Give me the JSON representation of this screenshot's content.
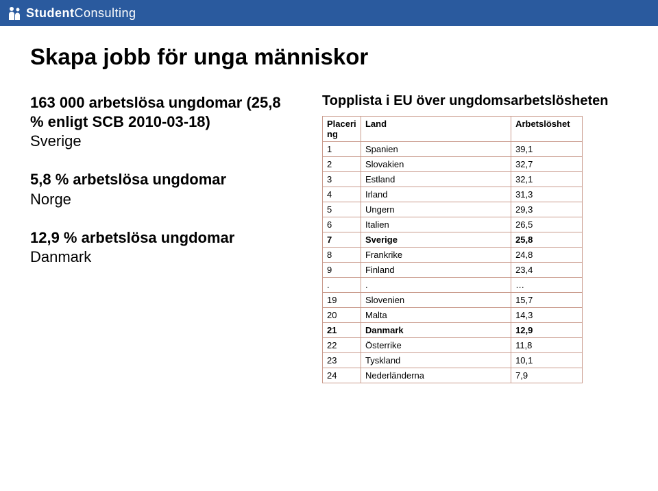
{
  "header": {
    "bg_color": "#2a5a9e",
    "brand_color": "#ffffff",
    "brand_main": "Student",
    "brand_sub": "Consulting",
    "brand_fontsize": 18
  },
  "title": {
    "text": "Skapa jobb för unga människor",
    "color": "#000000"
  },
  "left": {
    "blocks": [
      {
        "bold": "163 000 arbetslösa ungdomar (25,8 % enligt SCB 2010-03-18)",
        "plain": "Sverige"
      },
      {
        "bold": "5,8 % arbetslösa ungdomar",
        "plain": "Norge"
      },
      {
        "bold": "12,9 % arbetslösa ungdomar",
        "plain": "Danmark"
      }
    ],
    "text_color": "#000000"
  },
  "table": {
    "title": "Topplista i EU över ungdomsarbetslösheten",
    "title_color": "#000000",
    "border_color": "#c99a8c",
    "header_bg": "#ffffff",
    "row_bg": "#ffffff",
    "text_color": "#000000",
    "columns": [
      "Placering",
      "Land",
      "Arbetslöshet"
    ],
    "header_wrap": [
      "Placeri\nng",
      "Land",
      "Arbetslöshet"
    ],
    "rows": [
      {
        "rank": "1",
        "country": "Spanien",
        "value": "39,1",
        "bold": false
      },
      {
        "rank": "2",
        "country": "Slovakien",
        "value": "32,7",
        "bold": false
      },
      {
        "rank": "3",
        "country": "Estland",
        "value": "32,1",
        "bold": false
      },
      {
        "rank": "4",
        "country": "Irland",
        "value": "31,3",
        "bold": false
      },
      {
        "rank": "5",
        "country": "Ungern",
        "value": "29,3",
        "bold": false
      },
      {
        "rank": "6",
        "country": "Italien",
        "value": "26,5",
        "bold": false
      },
      {
        "rank": "7",
        "country": "Sverige",
        "value": "25,8",
        "bold": true
      },
      {
        "rank": "8",
        "country": "Frankrike",
        "value": "24,8",
        "bold": false
      },
      {
        "rank": "9",
        "country": "Finland",
        "value": "23,4",
        "bold": false
      },
      {
        "rank": ".",
        "country": ".",
        "value": "…",
        "bold": false
      },
      {
        "rank": "19",
        "country": "Slovenien",
        "value": "15,7",
        "bold": false
      },
      {
        "rank": "20",
        "country": "Malta",
        "value": "14,3",
        "bold": false
      },
      {
        "rank": "21",
        "country": "Danmark",
        "value": "12,9",
        "bold": true
      },
      {
        "rank": "22",
        "country": "Österrike",
        "value": "11,8",
        "bold": false
      },
      {
        "rank": "23",
        "country": "Tyskland",
        "value": "10,1",
        "bold": false
      },
      {
        "rank": "24",
        "country": "Nederländerna",
        "value": "7,9",
        "bold": false
      }
    ]
  }
}
